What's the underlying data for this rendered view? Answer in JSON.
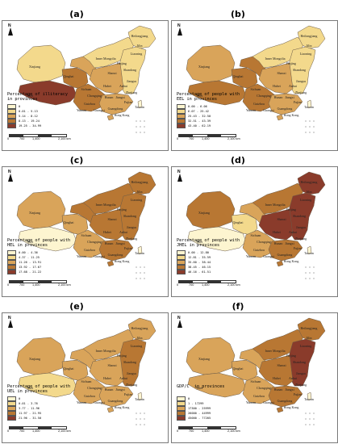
{
  "panels": [
    {
      "label": "(a)",
      "caption": "Percentage of illiteracy\nin provinces",
      "legend": [
        {
          "text": "0",
          "color": "#fdf5d0"
        },
        {
          "text": "0.01 - 5.13",
          "color": "#f3d98c"
        },
        {
          "text": "5.14 - 8.12",
          "color": "#d9a45a"
        },
        {
          "text": "8.13 - 19.24",
          "color": "#b87733"
        },
        {
          "text": "19.25 - 34.99",
          "color": "#8a3b2b"
        }
      ],
      "colors": {
        "xj": "#f3d98c",
        "xz": "#8a3b2b",
        "qh": "#b87733",
        "gs": "#d9a45a",
        "nm": "#f3d98c",
        "hlj": "#f3d98c",
        "east": "#f3d98c",
        "central": "#d9a45a",
        "south": "#d9a45a",
        "sw": "#b87733"
      }
    },
    {
      "label": "(b)",
      "caption": "Percentage of people with\nEEL in provinces",
      "legend": [
        {
          "text": "0.00 - 6.06",
          "color": "#fdf5d0"
        },
        {
          "text": "6.07 - 25.42",
          "color": "#f3d98c"
        },
        {
          "text": "25.43 - 32.50",
          "color": "#d9a45a"
        },
        {
          "text": "32.51 - 43.39",
          "color": "#b87733"
        },
        {
          "text": "43.40 - 62.19",
          "color": "#8a3b2b"
        }
      ],
      "colors": {
        "xj": "#d9a45a",
        "xz": "#b87733",
        "qh": "#b87733",
        "gs": "#b87733",
        "nm": "#f3d98c",
        "hlj": "#f3d98c",
        "east": "#f3d98c",
        "central": "#d9a45a",
        "south": "#d9a45a",
        "sw": "#b87733"
      }
    },
    {
      "label": "(c)",
      "caption": "Percentage of people with\nHEL in provinces",
      "legend": [
        {
          "text": "0.00 - 4.36",
          "color": "#fdf5d0"
        },
        {
          "text": "4.37 - 11.25",
          "color": "#f3d98c"
        },
        {
          "text": "11.26 - 13.91",
          "color": "#d9a45a"
        },
        {
          "text": "13.92 - 17.67",
          "color": "#b87733"
        },
        {
          "text": "17.68 - 21.22",
          "color": "#8a3b2b"
        }
      ],
      "colors": {
        "xj": "#d9a45a",
        "xz": "#fdf5d0",
        "qh": "#d9a45a",
        "gs": "#b87733",
        "nm": "#b87733",
        "hlj": "#b87733",
        "east": "#b87733",
        "central": "#b87733",
        "south": "#b87733",
        "sw": "#d9a45a"
      }
    },
    {
      "label": "(d)",
      "caption": "Percentage of people with\nJHEL in provinces",
      "legend": [
        {
          "text": "0.00 - 12.80",
          "color": "#fdf5d0"
        },
        {
          "text": "12.81 - 35.59",
          "color": "#f3d98c"
        },
        {
          "text": "35.60 - 38.44",
          "color": "#d9a45a"
        },
        {
          "text": "38.45 - 46.15",
          "color": "#b87733"
        },
        {
          "text": "46.16 - 61.51",
          "color": "#8a3b2b"
        }
      ],
      "colors": {
        "xj": "#b87733",
        "xz": "#fdf5d0",
        "qh": "#f3d98c",
        "gs": "#d9a45a",
        "nm": "#b87733",
        "hlj": "#8a3b2b",
        "east": "#8a3b2b",
        "central": "#8a3b2b",
        "south": "#b87733",
        "sw": "#d9a45a"
      }
    },
    {
      "label": "(e)",
      "caption": "Percentage of people with\nUEL in provinces",
      "legend": [
        {
          "text": "0",
          "color": "#fdf5d0"
        },
        {
          "text": "0.01 - 3.76",
          "color": "#f3d98c"
        },
        {
          "text": "3.77 - 11.96",
          "color": "#d9a45a"
        },
        {
          "text": "11.97 - 21.95",
          "color": "#b87733"
        },
        {
          "text": "21.96 - 31.50",
          "color": "#8a3b2b"
        }
      ],
      "colors": {
        "xj": "#d9a45a",
        "xz": "#f3d98c",
        "qh": "#d9a45a",
        "gs": "#d9a45a",
        "nm": "#d9a45a",
        "hlj": "#d9a45a",
        "east": "#b87733",
        "central": "#d9a45a",
        "south": "#d9a45a",
        "sw": "#d9a45a"
      }
    },
    {
      "label": "(f)",
      "caption": "GDP/C  in provinces",
      "legend": [
        {
          "text": "0",
          "color": "#fdf5d0"
        },
        {
          "text": "1 - 17299",
          "color": "#f3d98c"
        },
        {
          "text": "17300 - 25999",
          "color": "#d9a45a"
        },
        {
          "text": "26000 - 44999",
          "color": "#b87733"
        },
        {
          "text": "45000 - 77205",
          "color": "#8a3b2b"
        }
      ],
      "colors": {
        "xj": "#d9a45a",
        "xz": "#d9a45a",
        "qh": "#d9a45a",
        "gs": "#d9a45a",
        "nm": "#b87733",
        "hlj": "#b87733",
        "east": "#8a3b2b",
        "central": "#b87733",
        "south": "#b87733",
        "sw": "#d9a45a"
      }
    }
  ],
  "province_labels": {
    "xj": "Xinjiang",
    "xz": "Tibet",
    "qh": "Qinghai",
    "nm": "Inner Mongolia",
    "hlj": "Heilongjiang",
    "sc": "Sichuan",
    "gz": "Guizhou",
    "yn": "Yunnan",
    "hb": "Hubei",
    "hn": "Hunan",
    "gx": "Guangxi",
    "gd": "Guangdong",
    "tw": "Taiwan",
    "jl": "Jilin",
    "ln": "Liaoning",
    "bj": "Beijing",
    "sd": "Shandong",
    "js": "Jiangsu",
    "zj": "Zhejiang",
    "fj": "Fujian",
    "cq": "Chongqing",
    "hk": "Hong Kong",
    "sx": "Shanxi",
    "ah": "Anhui",
    "jx": "Jiangxi"
  },
  "scale": {
    "labels": [
      "0",
      "700",
      "1,400",
      "2,100 km"
    ]
  },
  "compass_letter": "N"
}
